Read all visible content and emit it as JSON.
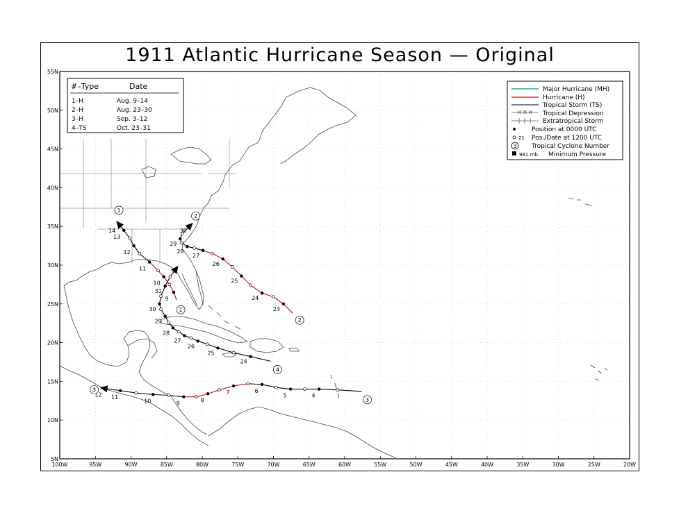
{
  "title": "1911 Atlantic Hurricane Season — Original",
  "storm_table": {
    "header_type": "#–Type",
    "header_date": "Date",
    "rows": [
      {
        "type": "1–H",
        "date": "Aug. 9–14"
      },
      {
        "type": "2–H",
        "date": "Aug. 23–30"
      },
      {
        "type": "3–H",
        "date": "Sep. 3–12"
      },
      {
        "type": "4–TS",
        "date": "Oct. 23–31"
      }
    ]
  },
  "legend": {
    "items": [
      {
        "label": "Major Hurricane (MH)",
        "color": "#00a050",
        "icon": "line-green"
      },
      {
        "label": "Hurricane (H)",
        "color": "#e00000",
        "icon": "line-red"
      },
      {
        "label": "Tropical Storm (TS)",
        "color": "#000000",
        "icon": "line-black"
      },
      {
        "label": "Tropical Depression",
        "color": "#000000",
        "icon": "line-x"
      },
      {
        "label": "Extratropical Storm",
        "color": "#000000",
        "icon": "line-plus"
      },
      {
        "label": "Position at 0000 UTC",
        "color": "#000000",
        "icon": "filled-dot"
      },
      {
        "label": "Pos./Date at 1200 UTC",
        "prefix": "21",
        "color": "#000000",
        "icon": "open-dot"
      },
      {
        "label": "Tropical Cyclone Number",
        "prefix": "3",
        "color": "#000000",
        "icon": "circled-number"
      },
      {
        "label": "Minimum Pressure",
        "prefix": "981 mb",
        "color": "#000000",
        "icon": "filled-square"
      }
    ]
  },
  "axes": {
    "lon_labels": [
      "100W",
      "95W",
      "90W",
      "85W",
      "80W",
      "75W",
      "70W",
      "65W",
      "60W",
      "55W",
      "50W",
      "45W",
      "40W",
      "35W",
      "30W",
      "25W",
      "20W"
    ],
    "lat_labels": [
      "5N",
      "10N",
      "15N",
      "20N",
      "25N",
      "30N",
      "35N",
      "40N",
      "45N",
      "50N",
      "55N"
    ]
  },
  "storms": [
    {
      "number": "1",
      "track": [
        {
          "lon": -83.6,
          "lat": 25.5,
          "status": "H"
        },
        {
          "lon": -84.0,
          "lat": 26.5,
          "day": "9",
          "status": "H"
        },
        {
          "lon": -84.6,
          "lat": 27.5,
          "status": "H"
        },
        {
          "lon": -85.4,
          "lat": 28.5,
          "day": "10",
          "status": "H"
        },
        {
          "lon": -86.2,
          "lat": 29.3,
          "status": "H"
        },
        {
          "lon": -87.4,
          "lat": 30.4,
          "day": "11",
          "status": "H"
        },
        {
          "lon": -88.8,
          "lat": 31.5,
          "status": "TS"
        },
        {
          "lon": -89.6,
          "lat": 32.5,
          "day": "12",
          "status": "TS"
        },
        {
          "lon": -90.2,
          "lat": 33.5,
          "status": "TS"
        },
        {
          "lon": -91.0,
          "lat": 34.5,
          "day": "13",
          "status": "TS"
        },
        {
          "lon": -91.7,
          "lat": 35.3,
          "day": "14",
          "status": "TS"
        }
      ]
    },
    {
      "number": "2",
      "track": [
        {
          "lon": -67.3,
          "lat": 23.8,
          "status": "TS"
        },
        {
          "lon": -68.6,
          "lat": 25.0,
          "day": "23",
          "status": "H"
        },
        {
          "lon": -70.0,
          "lat": 25.9,
          "status": "H"
        },
        {
          "lon": -71.6,
          "lat": 26.4,
          "day": "24",
          "status": "H"
        },
        {
          "lon": -73.2,
          "lat": 27.4,
          "status": "H"
        },
        {
          "lon": -74.5,
          "lat": 28.6,
          "day": "25",
          "status": "H"
        },
        {
          "lon": -75.8,
          "lat": 29.8,
          "status": "H"
        },
        {
          "lon": -77.1,
          "lat": 30.8,
          "day": "26",
          "status": "H"
        },
        {
          "lon": -78.6,
          "lat": 31.5,
          "status": "H"
        },
        {
          "lon": -79.9,
          "lat": 31.9,
          "day": "27",
          "status": "H"
        },
        {
          "lon": -81.1,
          "lat": 32.2,
          "status": "TS"
        },
        {
          "lon": -82.1,
          "lat": 32.4,
          "day": "28",
          "status": "TS"
        },
        {
          "lon": -82.9,
          "lat": 32.9,
          "status": "TS"
        },
        {
          "lon": -83.1,
          "lat": 33.4,
          "day": "29",
          "status": "TS"
        },
        {
          "lon": -82.8,
          "lat": 34.1,
          "status": "TS"
        },
        {
          "lon": -81.7,
          "lat": 35.1,
          "day": "30",
          "status": "TS"
        }
      ]
    },
    {
      "number": "3",
      "track": [
        {
          "lon": -57.6,
          "lat": 13.7,
          "status": "TS"
        },
        {
          "lon": -61.0,
          "lat": 13.9,
          "status": "TS"
        },
        {
          "lon": -63.6,
          "lat": 14.0,
          "day": "4",
          "status": "TS"
        },
        {
          "lon": -65.6,
          "lat": 14.0,
          "status": "TS"
        },
        {
          "lon": -67.6,
          "lat": 14.0,
          "day": "5",
          "status": "TS"
        },
        {
          "lon": -69.6,
          "lat": 14.2,
          "status": "TS"
        },
        {
          "lon": -71.6,
          "lat": 14.6,
          "day": "6",
          "status": "TS"
        },
        {
          "lon": -73.6,
          "lat": 14.7,
          "status": "TS"
        },
        {
          "lon": -75.6,
          "lat": 14.4,
          "day": "7",
          "status": "H"
        },
        {
          "lon": -77.6,
          "lat": 13.9,
          "status": "H"
        },
        {
          "lon": -79.2,
          "lat": 13.4,
          "day": "8",
          "status": "H"
        },
        {
          "lon": -80.8,
          "lat": 13.0,
          "status": "H"
        },
        {
          "lon": -82.6,
          "lat": 13.0,
          "day": "9",
          "status": "H"
        },
        {
          "lon": -84.7,
          "lat": 13.2,
          "status": "TS"
        },
        {
          "lon": -86.9,
          "lat": 13.3,
          "day": "10",
          "status": "TS"
        },
        {
          "lon": -89.3,
          "lat": 13.5,
          "status": "TS"
        },
        {
          "lon": -91.5,
          "lat": 13.8,
          "day": "11",
          "status": "TS"
        },
        {
          "lon": -93.8,
          "lat": 14.1,
          "day": "12",
          "status": "TS"
        }
      ]
    },
    {
      "number": "4",
      "track": [
        {
          "lon": -70.4,
          "lat": 17.6,
          "status": "TS"
        },
        {
          "lon": -73.2,
          "lat": 18.2,
          "day": "24",
          "status": "TS"
        },
        {
          "lon": -75.6,
          "lat": 18.7,
          "status": "TS"
        },
        {
          "lon": -77.8,
          "lat": 19.3,
          "day": "25",
          "status": "TS"
        },
        {
          "lon": -79.3,
          "lat": 19.8,
          "status": "TS"
        },
        {
          "lon": -80.6,
          "lat": 20.2,
          "day": "26",
          "status": "TS"
        },
        {
          "lon": -81.6,
          "lat": 20.6,
          "status": "TS"
        },
        {
          "lon": -82.5,
          "lat": 20.9,
          "day": "27",
          "status": "TS"
        },
        {
          "lon": -83.3,
          "lat": 21.4,
          "status": "TS"
        },
        {
          "lon": -84.1,
          "lat": 21.9,
          "day": "28",
          "status": "TS"
        },
        {
          "lon": -84.7,
          "lat": 22.6,
          "status": "TS"
        },
        {
          "lon": -85.2,
          "lat": 23.4,
          "day": "29",
          "status": "TS"
        },
        {
          "lon": -85.8,
          "lat": 24.3,
          "status": "TS"
        },
        {
          "lon": -86.0,
          "lat": 25.0,
          "day": "30",
          "status": "TS"
        },
        {
          "lon": -85.8,
          "lat": 26.0,
          "status": "TS"
        },
        {
          "lon": -85.2,
          "lat": 27.3,
          "day": "31",
          "status": "TS"
        },
        {
          "lon": -84.5,
          "lat": 28.5,
          "status": "TS"
        },
        {
          "lon": -83.7,
          "lat": 29.5,
          "status": "TS"
        }
      ]
    }
  ]
}
